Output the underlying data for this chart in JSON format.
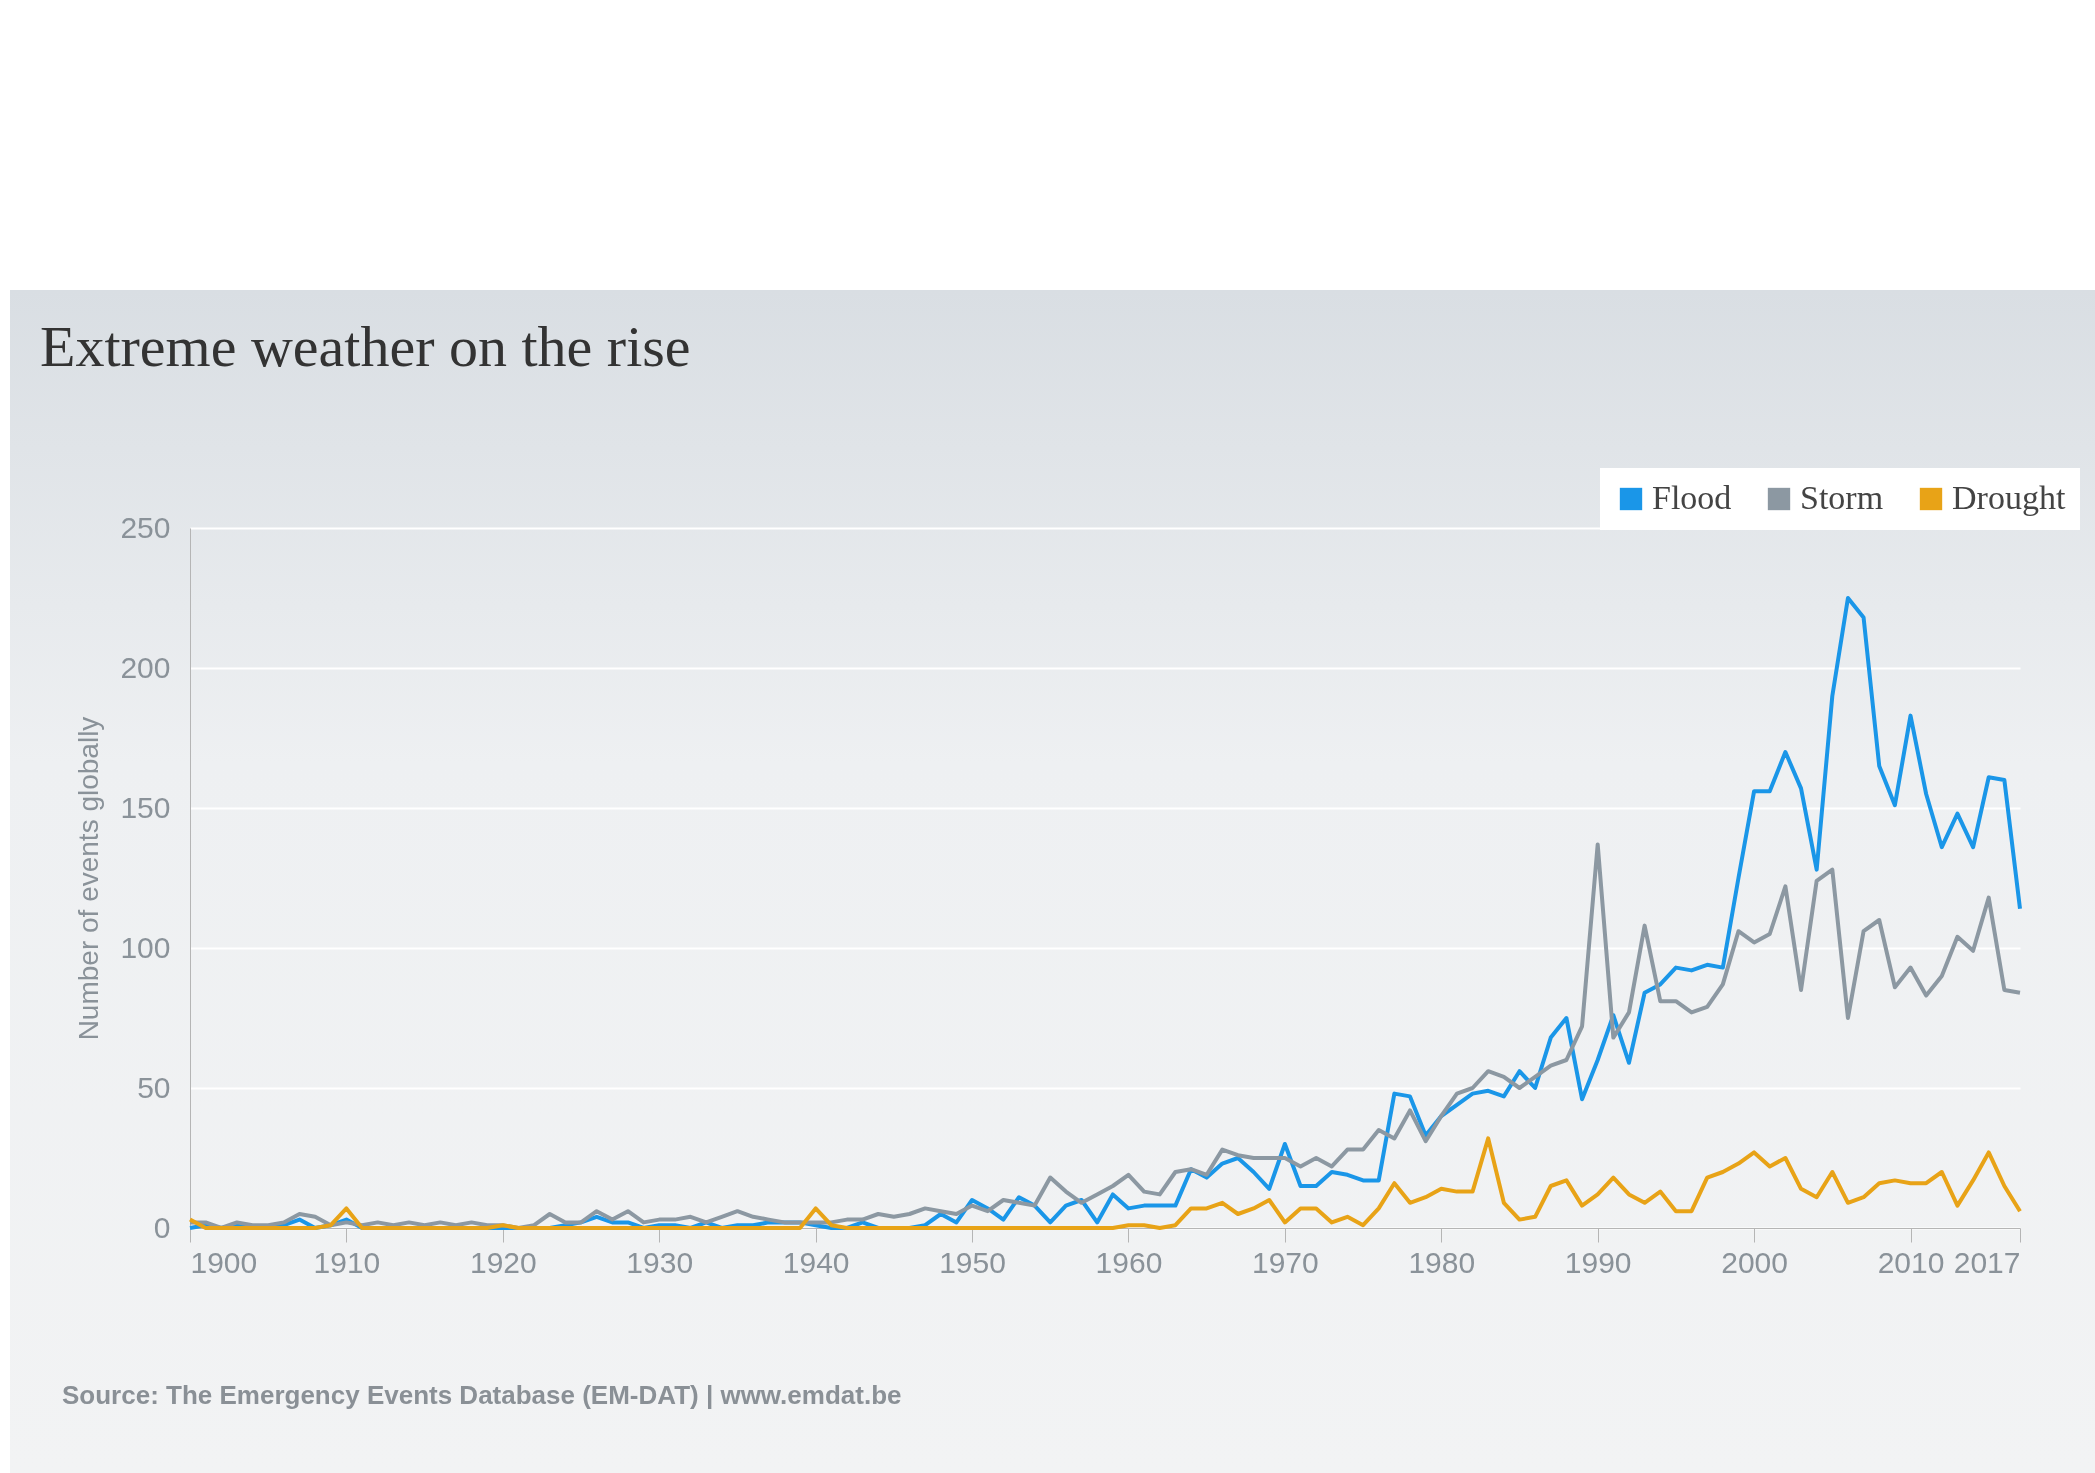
{
  "chart_data": {
    "type": "line",
    "title": "Extreme weather on the rise",
    "ylabel": "Number of events globally",
    "annotations": [
      "Source: The Emergency Events Database (EM-DAT) | www.emdat.be"
    ],
    "x": [
      1900,
      1901,
      1902,
      1903,
      1904,
      1905,
      1906,
      1907,
      1908,
      1909,
      1910,
      1911,
      1912,
      1913,
      1914,
      1915,
      1916,
      1917,
      1918,
      1919,
      1920,
      1921,
      1922,
      1923,
      1924,
      1925,
      1926,
      1927,
      1928,
      1929,
      1930,
      1931,
      1932,
      1933,
      1934,
      1935,
      1936,
      1937,
      1938,
      1939,
      1940,
      1941,
      1942,
      1943,
      1944,
      1945,
      1946,
      1947,
      1948,
      1949,
      1950,
      1951,
      1952,
      1953,
      1954,
      1955,
      1956,
      1957,
      1958,
      1959,
      1960,
      1961,
      1962,
      1963,
      1964,
      1965,
      1966,
      1967,
      1968,
      1969,
      1970,
      1971,
      1972,
      1973,
      1974,
      1975,
      1976,
      1977,
      1978,
      1979,
      1980,
      1981,
      1982,
      1983,
      1984,
      1985,
      1986,
      1987,
      1988,
      1989,
      1990,
      1991,
      1992,
      1993,
      1994,
      1995,
      1996,
      1997,
      1998,
      1999,
      2000,
      2001,
      2002,
      2003,
      2004,
      2005,
      2006,
      2007,
      2008,
      2009,
      2010,
      2011,
      2012,
      2013,
      2014,
      2015,
      2016,
      2017
    ],
    "series": [
      {
        "name": "Flood",
        "color": "#1a96e8",
        "values": [
          0,
          1,
          0,
          1,
          0,
          0,
          1,
          3,
          0,
          1,
          3,
          0,
          0,
          0,
          0,
          0,
          0,
          0,
          0,
          0,
          0,
          0,
          0,
          0,
          1,
          2,
          4,
          2,
          2,
          0,
          1,
          1,
          0,
          2,
          0,
          1,
          1,
          2,
          2,
          2,
          1,
          0,
          0,
          2,
          0,
          0,
          0,
          1,
          5,
          2,
          10,
          7,
          3,
          11,
          8,
          2,
          8,
          10,
          2,
          12,
          7,
          8,
          8,
          8,
          21,
          18,
          23,
          25,
          20,
          14,
          30,
          15,
          15,
          20,
          19,
          17,
          17,
          48,
          47,
          33,
          40,
          44,
          48,
          49,
          47,
          56,
          50,
          68,
          75,
          46,
          60,
          76,
          59,
          84,
          87,
          93,
          92,
          94,
          93,
          125,
          156,
          156,
          170,
          157,
          128,
          190,
          225,
          218,
          165,
          151,
          183,
          155,
          136,
          148,
          136,
          161,
          160,
          114
        ]
      },
      {
        "name": "Storm",
        "color": "#8c98a2",
        "values": [
          2,
          2,
          0,
          2,
          1,
          1,
          2,
          5,
          4,
          1,
          2,
          1,
          2,
          1,
          2,
          1,
          2,
          1,
          2,
          1,
          1,
          0,
          1,
          5,
          2,
          2,
          6,
          3,
          6,
          2,
          3,
          3,
          4,
          2,
          4,
          6,
          4,
          3,
          2,
          2,
          2,
          2,
          3,
          3,
          5,
          4,
          5,
          7,
          6,
          5,
          8,
          6,
          10,
          9,
          8,
          18,
          13,
          9,
          12,
          15,
          19,
          13,
          12,
          20,
          21,
          19,
          28,
          26,
          25,
          25,
          25,
          22,
          25,
          22,
          28,
          28,
          35,
          32,
          42,
          31,
          40,
          48,
          50,
          56,
          54,
          50,
          54,
          58,
          60,
          72,
          137,
          68,
          77,
          108,
          81,
          81,
          77,
          79,
          87,
          106,
          102,
          105,
          122,
          85,
          124,
          128,
          75,
          106,
          110,
          86,
          93,
          83,
          90,
          104,
          99,
          118,
          85,
          84
        ]
      },
      {
        "name": "Drought",
        "color": "#e8a317",
        "values": [
          3,
          0,
          0,
          0,
          0,
          0,
          0,
          0,
          0,
          1,
          7,
          0,
          0,
          0,
          0,
          0,
          0,
          0,
          0,
          0,
          1,
          0,
          0,
          0,
          0,
          0,
          0,
          0,
          0,
          0,
          0,
          0,
          0,
          0,
          0,
          0,
          0,
          0,
          0,
          0,
          7,
          1,
          0,
          0,
          0,
          0,
          0,
          0,
          0,
          0,
          0,
          0,
          0,
          0,
          0,
          0,
          0,
          0,
          0,
          0,
          1,
          1,
          0,
          1,
          7,
          7,
          9,
          5,
          7,
          10,
          2,
          7,
          7,
          2,
          4,
          1,
          7,
          16,
          9,
          11,
          14,
          13,
          13,
          32,
          9,
          3,
          4,
          15,
          17,
          8,
          12,
          18,
          12,
          9,
          13,
          6,
          6,
          18,
          20,
          23,
          27,
          22,
          25,
          14,
          11,
          20,
          9,
          11,
          16,
          17,
          16,
          16,
          20,
          8,
          17,
          27,
          15,
          6
        ]
      }
    ],
    "xlim": [
      1900,
      2017
    ],
    "xticks": [
      1900,
      1910,
      1920,
      1930,
      1940,
      1950,
      1960,
      1970,
      1980,
      1990,
      2000,
      2010,
      2017
    ],
    "ylim": [
      0,
      250
    ],
    "yticks": [
      0,
      50,
      100,
      150,
      200,
      250
    ],
    "grid": "y",
    "legend": "top right",
    "marker": "none",
    "line_style": "solid"
  }
}
